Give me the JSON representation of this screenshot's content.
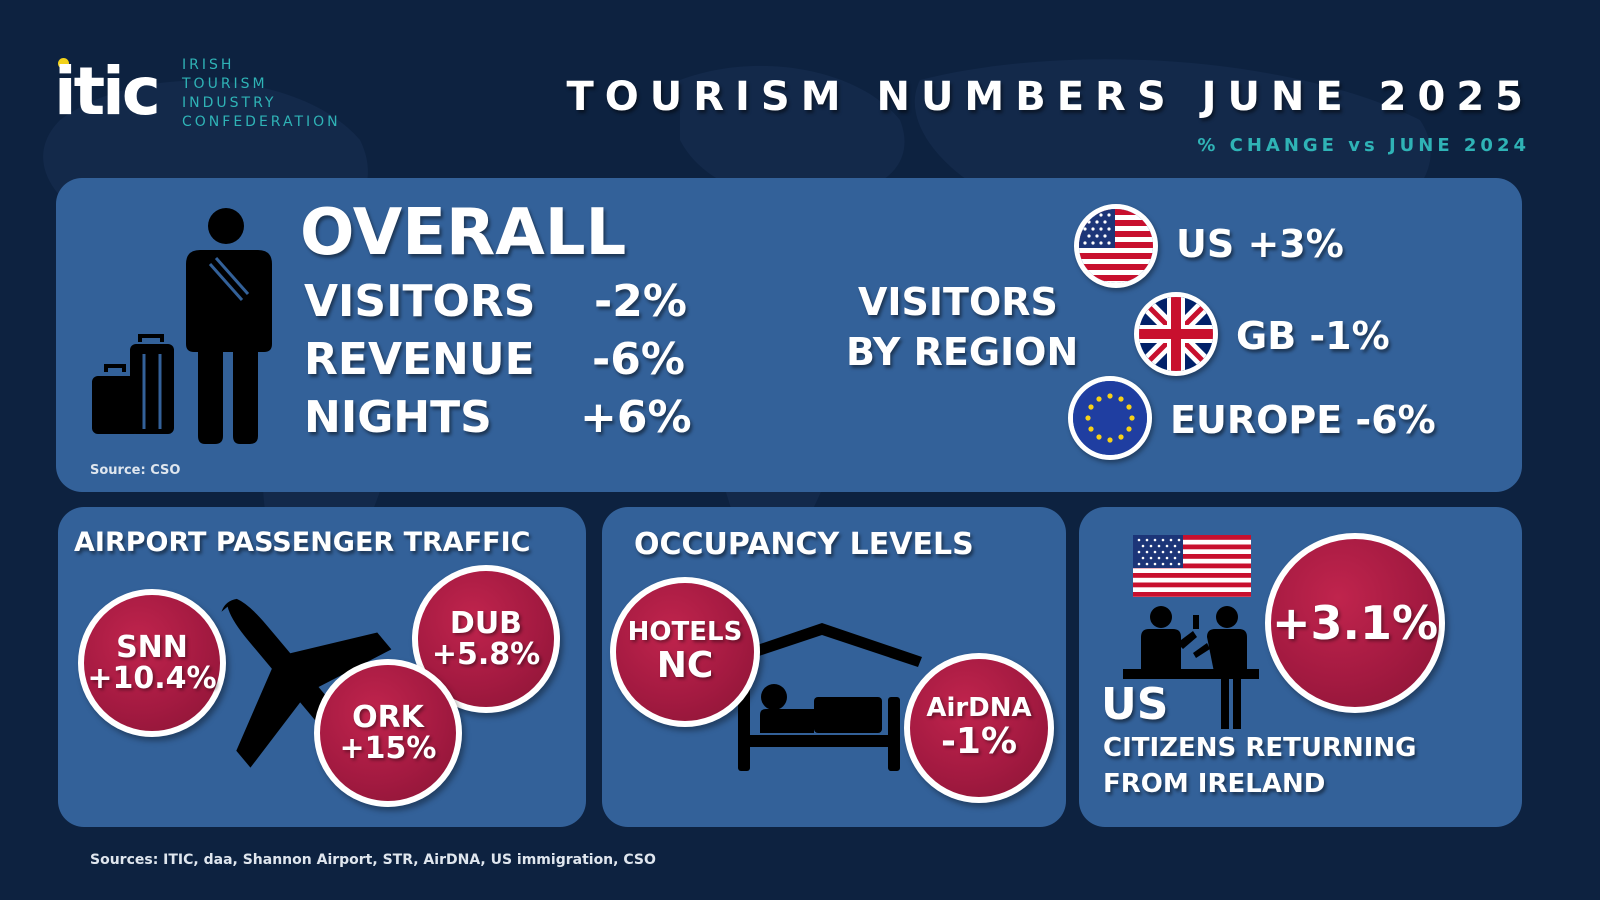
{
  "logo": {
    "mark": "itic",
    "lines": [
      "IRISH",
      "TOURISM",
      "INDUSTRY",
      "CONFEDERATION"
    ]
  },
  "header": {
    "title": "TOURISM NUMBERS JUNE 2025",
    "subtitle": "% CHANGE vs JUNE 2024"
  },
  "overall": {
    "heading": "OVERALL",
    "rows": [
      {
        "label": "VISITORS",
        "value": "-2%"
      },
      {
        "label": "REVENUE",
        "value": "-6%"
      },
      {
        "label": "NIGHTS",
        "value": "+6%"
      }
    ],
    "source": "Source: CSO",
    "icon": "traveller-with-luggage-icon"
  },
  "region": {
    "heading_line1": "VISITORS",
    "heading_line2": "BY REGION",
    "items": [
      {
        "label": "US +3%",
        "flag": "us-flag-icon"
      },
      {
        "label": "GB -1%",
        "flag": "uk-flag-icon"
      },
      {
        "label": "EUROPE -6%",
        "flag": "eu-flag-icon"
      }
    ]
  },
  "airport": {
    "heading": "AIRPORT PASSENGER TRAFFIC",
    "icon": "airplane-icon",
    "bubbles": [
      {
        "code": "SNN",
        "value": "+10.4%"
      },
      {
        "code": "DUB",
        "value": "+5.8%"
      },
      {
        "code": "ORK",
        "value": "+15%"
      }
    ]
  },
  "occupancy": {
    "heading": "OCCUPANCY LEVELS",
    "icon": "bed-icon",
    "hotels": {
      "line1": "HOTELS",
      "line2": "NC"
    },
    "airdna": {
      "line1": "AirDNA",
      "line2": "-1%"
    }
  },
  "us_citizens": {
    "value": "+3.1%",
    "label_big": "US",
    "label_line1": "CITIZENS RETURNING",
    "label_line2": "FROM IRELAND",
    "icon": "immigration-desk-icon"
  },
  "footer": {
    "sources": "Sources: ITIC, daa, Shannon Airport, STR, AirDNA, US immigration, CSO"
  },
  "colors": {
    "background": "#0d2240",
    "panel": "#336199",
    "accent_teal": "#2fb3b6",
    "bubble": "#a41a41",
    "logo_dot": "#f2d21b"
  }
}
